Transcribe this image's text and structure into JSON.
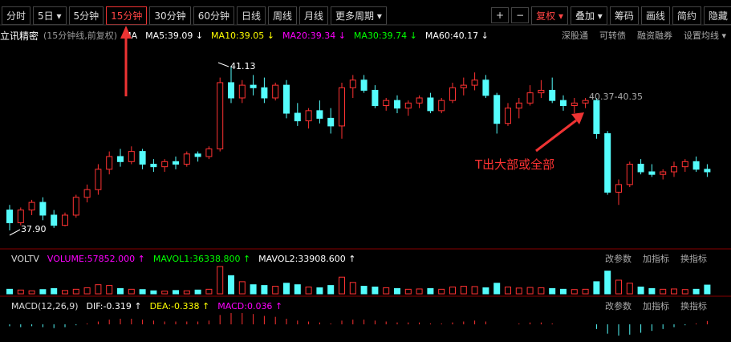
{
  "toolbar": {
    "left": [
      "分时",
      "5日 ▾",
      "5分钟",
      "15分钟",
      "30分钟",
      "60分钟",
      "日线",
      "周线",
      "月线",
      "更多周期 ▾"
    ],
    "right": [
      "+",
      "−",
      "复权 ▾",
      "叠加 ▾",
      "筹码",
      "画线",
      "简约",
      "隐藏"
    ]
  },
  "info": {
    "name": "立讯精密",
    "period": "(15分钟线,前复权)",
    "ma": "MA",
    "items": [
      {
        "label": "MA5:39.09 ↓",
        "color": "#ffffff"
      },
      {
        "label": "MA10:39.05 ↓",
        "color": "#ffff00"
      },
      {
        "label": "MA20:39.34 ↓",
        "color": "#ff00ff"
      },
      {
        "label": "MA30:39.74 ↓",
        "color": "#00ff00"
      },
      {
        "label": "MA60:40.17 ↓",
        "color": "#ffffff"
      }
    ],
    "links": [
      "深股通",
      "可转债",
      "融资融券",
      "设置均线 ▾"
    ]
  },
  "annotations": {
    "high": "41.13",
    "low": "37.90",
    "range": "40.37-40.35",
    "note": "T出大部或全部"
  },
  "volume_panel": {
    "name": "VOLTV",
    "items": [
      {
        "label": "VOLUME:57852.000 ↑",
        "color": "#ff00ff"
      },
      {
        "label": "MAVOL1:36338.800 ↑",
        "color": "#00ff00"
      },
      {
        "label": "MAVOL2:33908.600 ↑",
        "color": "#ffffff"
      }
    ],
    "links": [
      "改参数",
      "加指标",
      "换指标"
    ]
  },
  "macd_panel": {
    "name": "MACD(12,26,9)",
    "items": [
      {
        "label": "DIF:-0.319 ↑",
        "color": "#ffffff"
      },
      {
        "label": "DEA:-0.338 ↑",
        "color": "#ffff00"
      },
      {
        "label": "MACD:0.036 ↑",
        "color": "#ff00ff"
      }
    ],
    "links": [
      "改参数",
      "加指标",
      "换指标"
    ]
  },
  "chart": {
    "type": "candlestick",
    "up_color": "#ff3232",
    "down_color": "#54fcfc",
    "candles": [
      [
        38.3,
        38.4,
        37.9,
        38.05
      ],
      [
        38.05,
        38.35,
        38.0,
        38.3
      ],
      [
        38.3,
        38.5,
        38.2,
        38.45
      ],
      [
        38.45,
        38.55,
        38.1,
        38.2
      ],
      [
        38.2,
        38.3,
        37.95,
        38.0
      ],
      [
        38.0,
        38.25,
        37.98,
        38.2
      ],
      [
        38.2,
        38.6,
        38.15,
        38.55
      ],
      [
        38.55,
        38.8,
        38.45,
        38.7
      ],
      [
        38.7,
        39.2,
        38.6,
        39.1
      ],
      [
        39.1,
        39.45,
        39.0,
        39.35
      ],
      [
        39.35,
        39.5,
        39.15,
        39.25
      ],
      [
        39.25,
        39.55,
        39.2,
        39.45
      ],
      [
        39.45,
        39.5,
        39.1,
        39.2
      ],
      [
        39.2,
        39.3,
        39.05,
        39.15
      ],
      [
        39.15,
        39.3,
        39.05,
        39.25
      ],
      [
        39.25,
        39.35,
        39.1,
        39.2
      ],
      [
        39.2,
        39.45,
        39.15,
        39.4
      ],
      [
        39.4,
        39.45,
        39.25,
        39.35
      ],
      [
        39.35,
        39.55,
        39.3,
        39.5
      ],
      [
        39.5,
        40.9,
        39.45,
        40.8
      ],
      [
        40.8,
        41.13,
        40.4,
        40.5
      ],
      [
        40.5,
        40.85,
        40.4,
        40.75
      ],
      [
        40.75,
        40.95,
        40.55,
        40.7
      ],
      [
        40.7,
        40.9,
        40.4,
        40.5
      ],
      [
        40.5,
        40.8,
        40.45,
        40.75
      ],
      [
        40.75,
        40.85,
        40.1,
        40.2
      ],
      [
        40.2,
        40.4,
        39.95,
        40.05
      ],
      [
        40.05,
        40.3,
        39.9,
        40.25
      ],
      [
        40.25,
        40.45,
        40.0,
        40.1
      ],
      [
        40.1,
        40.3,
        39.8,
        39.95
      ],
      [
        39.95,
        40.8,
        39.7,
        40.7
      ],
      [
        40.7,
        40.95,
        40.5,
        40.85
      ],
      [
        40.85,
        40.95,
        40.6,
        40.65
      ],
      [
        40.65,
        40.75,
        40.3,
        40.35
      ],
      [
        40.35,
        40.5,
        40.25,
        40.45
      ],
      [
        40.45,
        40.55,
        40.2,
        40.3
      ],
      [
        40.3,
        40.45,
        40.15,
        40.4
      ],
      [
        40.4,
        40.55,
        40.3,
        40.5
      ],
      [
        40.5,
        40.6,
        40.2,
        40.25
      ],
      [
        40.25,
        40.5,
        40.2,
        40.45
      ],
      [
        40.45,
        40.8,
        40.4,
        40.7
      ],
      [
        40.7,
        40.9,
        40.55,
        40.75
      ],
      [
        40.75,
        41.0,
        40.65,
        40.85
      ],
      [
        40.85,
        40.95,
        40.5,
        40.55
      ],
      [
        40.55,
        40.6,
        39.8,
        40.0
      ],
      [
        40.0,
        40.4,
        39.95,
        40.3
      ],
      [
        40.3,
        40.5,
        40.1,
        40.4
      ],
      [
        40.4,
        40.75,
        40.35,
        40.6
      ],
      [
        40.6,
        40.85,
        40.5,
        40.65
      ],
      [
        40.65,
        40.9,
        40.4,
        40.45
      ],
      [
        40.45,
        40.55,
        40.25,
        40.35
      ],
      [
        40.35,
        40.5,
        40.2,
        40.4
      ],
      [
        40.4,
        40.5,
        40.3,
        40.45
      ],
      [
        40.45,
        40.5,
        39.7,
        39.8
      ],
      [
        39.8,
        39.85,
        38.6,
        38.65
      ],
      [
        38.65,
        38.9,
        38.4,
        38.8
      ],
      [
        38.8,
        39.25,
        38.75,
        39.2
      ],
      [
        39.2,
        39.3,
        39.0,
        39.05
      ],
      [
        39.05,
        39.2,
        38.95,
        39.0
      ],
      [
        39.0,
        39.1,
        38.9,
        39.05
      ],
      [
        39.05,
        39.25,
        38.95,
        39.15
      ],
      [
        39.15,
        39.3,
        39.05,
        39.25
      ],
      [
        39.25,
        39.35,
        39.05,
        39.1
      ],
      [
        39.1,
        39.2,
        38.95,
        39.05
      ]
    ],
    "volumes": [
      30000,
      25000,
      20000,
      28000,
      35000,
      22000,
      30000,
      40000,
      60000,
      55000,
      35000,
      30000,
      28000,
      20000,
      18000,
      22000,
      20000,
      25000,
      30000,
      180000,
      120000,
      80000,
      60000,
      55000,
      50000,
      70000,
      60000,
      45000,
      40000,
      55000,
      110000,
      75000,
      50000,
      45000,
      40000,
      35000,
      30000,
      32000,
      35000,
      30000,
      45000,
      50000,
      48000,
      40000,
      70000,
      45000,
      38000,
      42000,
      40000,
      35000,
      30000,
      28000,
      30000,
      80000,
      150000,
      90000,
      70000,
      45000,
      35000,
      30000,
      32000,
      28000,
      30000,
      57852
    ],
    "macd": [
      -0.02,
      -0.03,
      -0.02,
      -0.03,
      -0.04,
      -0.03,
      -0.01,
      0.01,
      0.03,
      0.05,
      0.06,
      0.06,
      0.05,
      0.04,
      0.03,
      0.03,
      0.03,
      0.03,
      0.04,
      0.1,
      0.12,
      0.12,
      0.11,
      0.09,
      0.08,
      0.06,
      0.04,
      0.03,
      0.02,
      0.01,
      0.04,
      0.05,
      0.05,
      0.04,
      0.03,
      0.02,
      0.02,
      0.02,
      0.01,
      0.01,
      0.02,
      0.03,
      0.04,
      0.03,
      0.0,
      0.0,
      0.01,
      0.02,
      0.02,
      0.01,
      0.0,
      0.0,
      0.0,
      -0.05,
      -0.1,
      -0.12,
      -0.11,
      -0.09,
      -0.07,
      -0.05,
      -0.03,
      -0.01,
      0.01,
      0.036
    ]
  }
}
